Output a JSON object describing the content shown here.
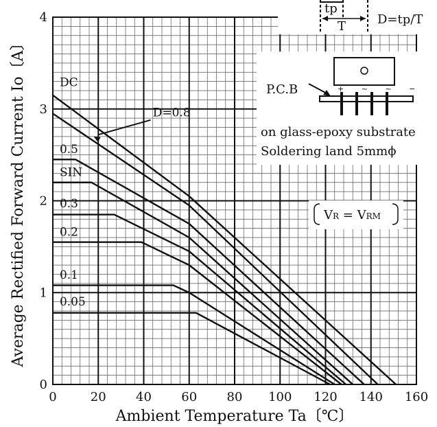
{
  "chart_data": {
    "type": "line",
    "xlabel": "Ambient Temperature Ta〔℃〕",
    "ylabel": "Average Rectified Forward Current Io〔A〕",
    "xlim": [
      0,
      160
    ],
    "ylim": [
      0,
      4
    ],
    "xticks": [
      0,
      20,
      40,
      60,
      80,
      100,
      120,
      140,
      160
    ],
    "yticks": [
      0,
      1,
      2,
      3,
      4
    ],
    "x_tick_labels": [
      "0",
      "20",
      "40",
      "60",
      "80",
      "100",
      "120",
      "140",
      "160"
    ],
    "y_tick_labels": [
      "0",
      "1",
      "2",
      "3",
      "4"
    ],
    "grid": true,
    "series": [
      {
        "name": "DC",
        "points": [
          [
            0,
            3.15
          ],
          [
            60,
            2.05
          ],
          [
            151,
            0.0
          ]
        ]
      },
      {
        "name": "D=0.8",
        "points": [
          [
            0,
            2.95
          ],
          [
            60,
            1.95
          ],
          [
            143,
            0.0
          ]
        ]
      },
      {
        "name": "0.5",
        "points": [
          [
            0,
            2.45
          ],
          [
            10,
            2.45
          ],
          [
            60,
            1.75
          ],
          [
            137,
            0.0
          ]
        ]
      },
      {
        "name": "SIN",
        "points": [
          [
            0,
            2.2
          ],
          [
            17,
            2.2
          ],
          [
            60,
            1.6
          ],
          [
            132,
            0.0
          ]
        ]
      },
      {
        "name": "0.3",
        "points": [
          [
            0,
            1.85
          ],
          [
            27,
            1.85
          ],
          [
            60,
            1.45
          ],
          [
            129,
            0.0
          ]
        ]
      },
      {
        "name": "0.2",
        "points": [
          [
            0,
            1.55
          ],
          [
            39,
            1.55
          ],
          [
            60,
            1.3
          ],
          [
            127,
            0.0
          ]
        ]
      },
      {
        "name": "0.1",
        "points": [
          [
            0,
            1.08
          ],
          [
            53,
            1.08
          ],
          [
            60,
            1.0
          ],
          [
            124,
            0.0
          ]
        ]
      },
      {
        "name": "0.05",
        "points": [
          [
            0,
            0.78
          ],
          [
            63,
            0.78
          ],
          [
            122,
            0.0
          ]
        ]
      }
    ],
    "annotations": {
      "waveform_tp": "tp",
      "waveform_T": "T",
      "duty_formula": "D=tp/T",
      "pcb_label": "P.C.B",
      "pin_marks": "+ ~ ~ −",
      "substrate": "on glass-epoxy substrate",
      "land": "Soldering land 5mmϕ",
      "condition_a": "V",
      "condition_a_sub": "R",
      "condition_eq": " = V",
      "condition_b_sub": "RM"
    }
  }
}
